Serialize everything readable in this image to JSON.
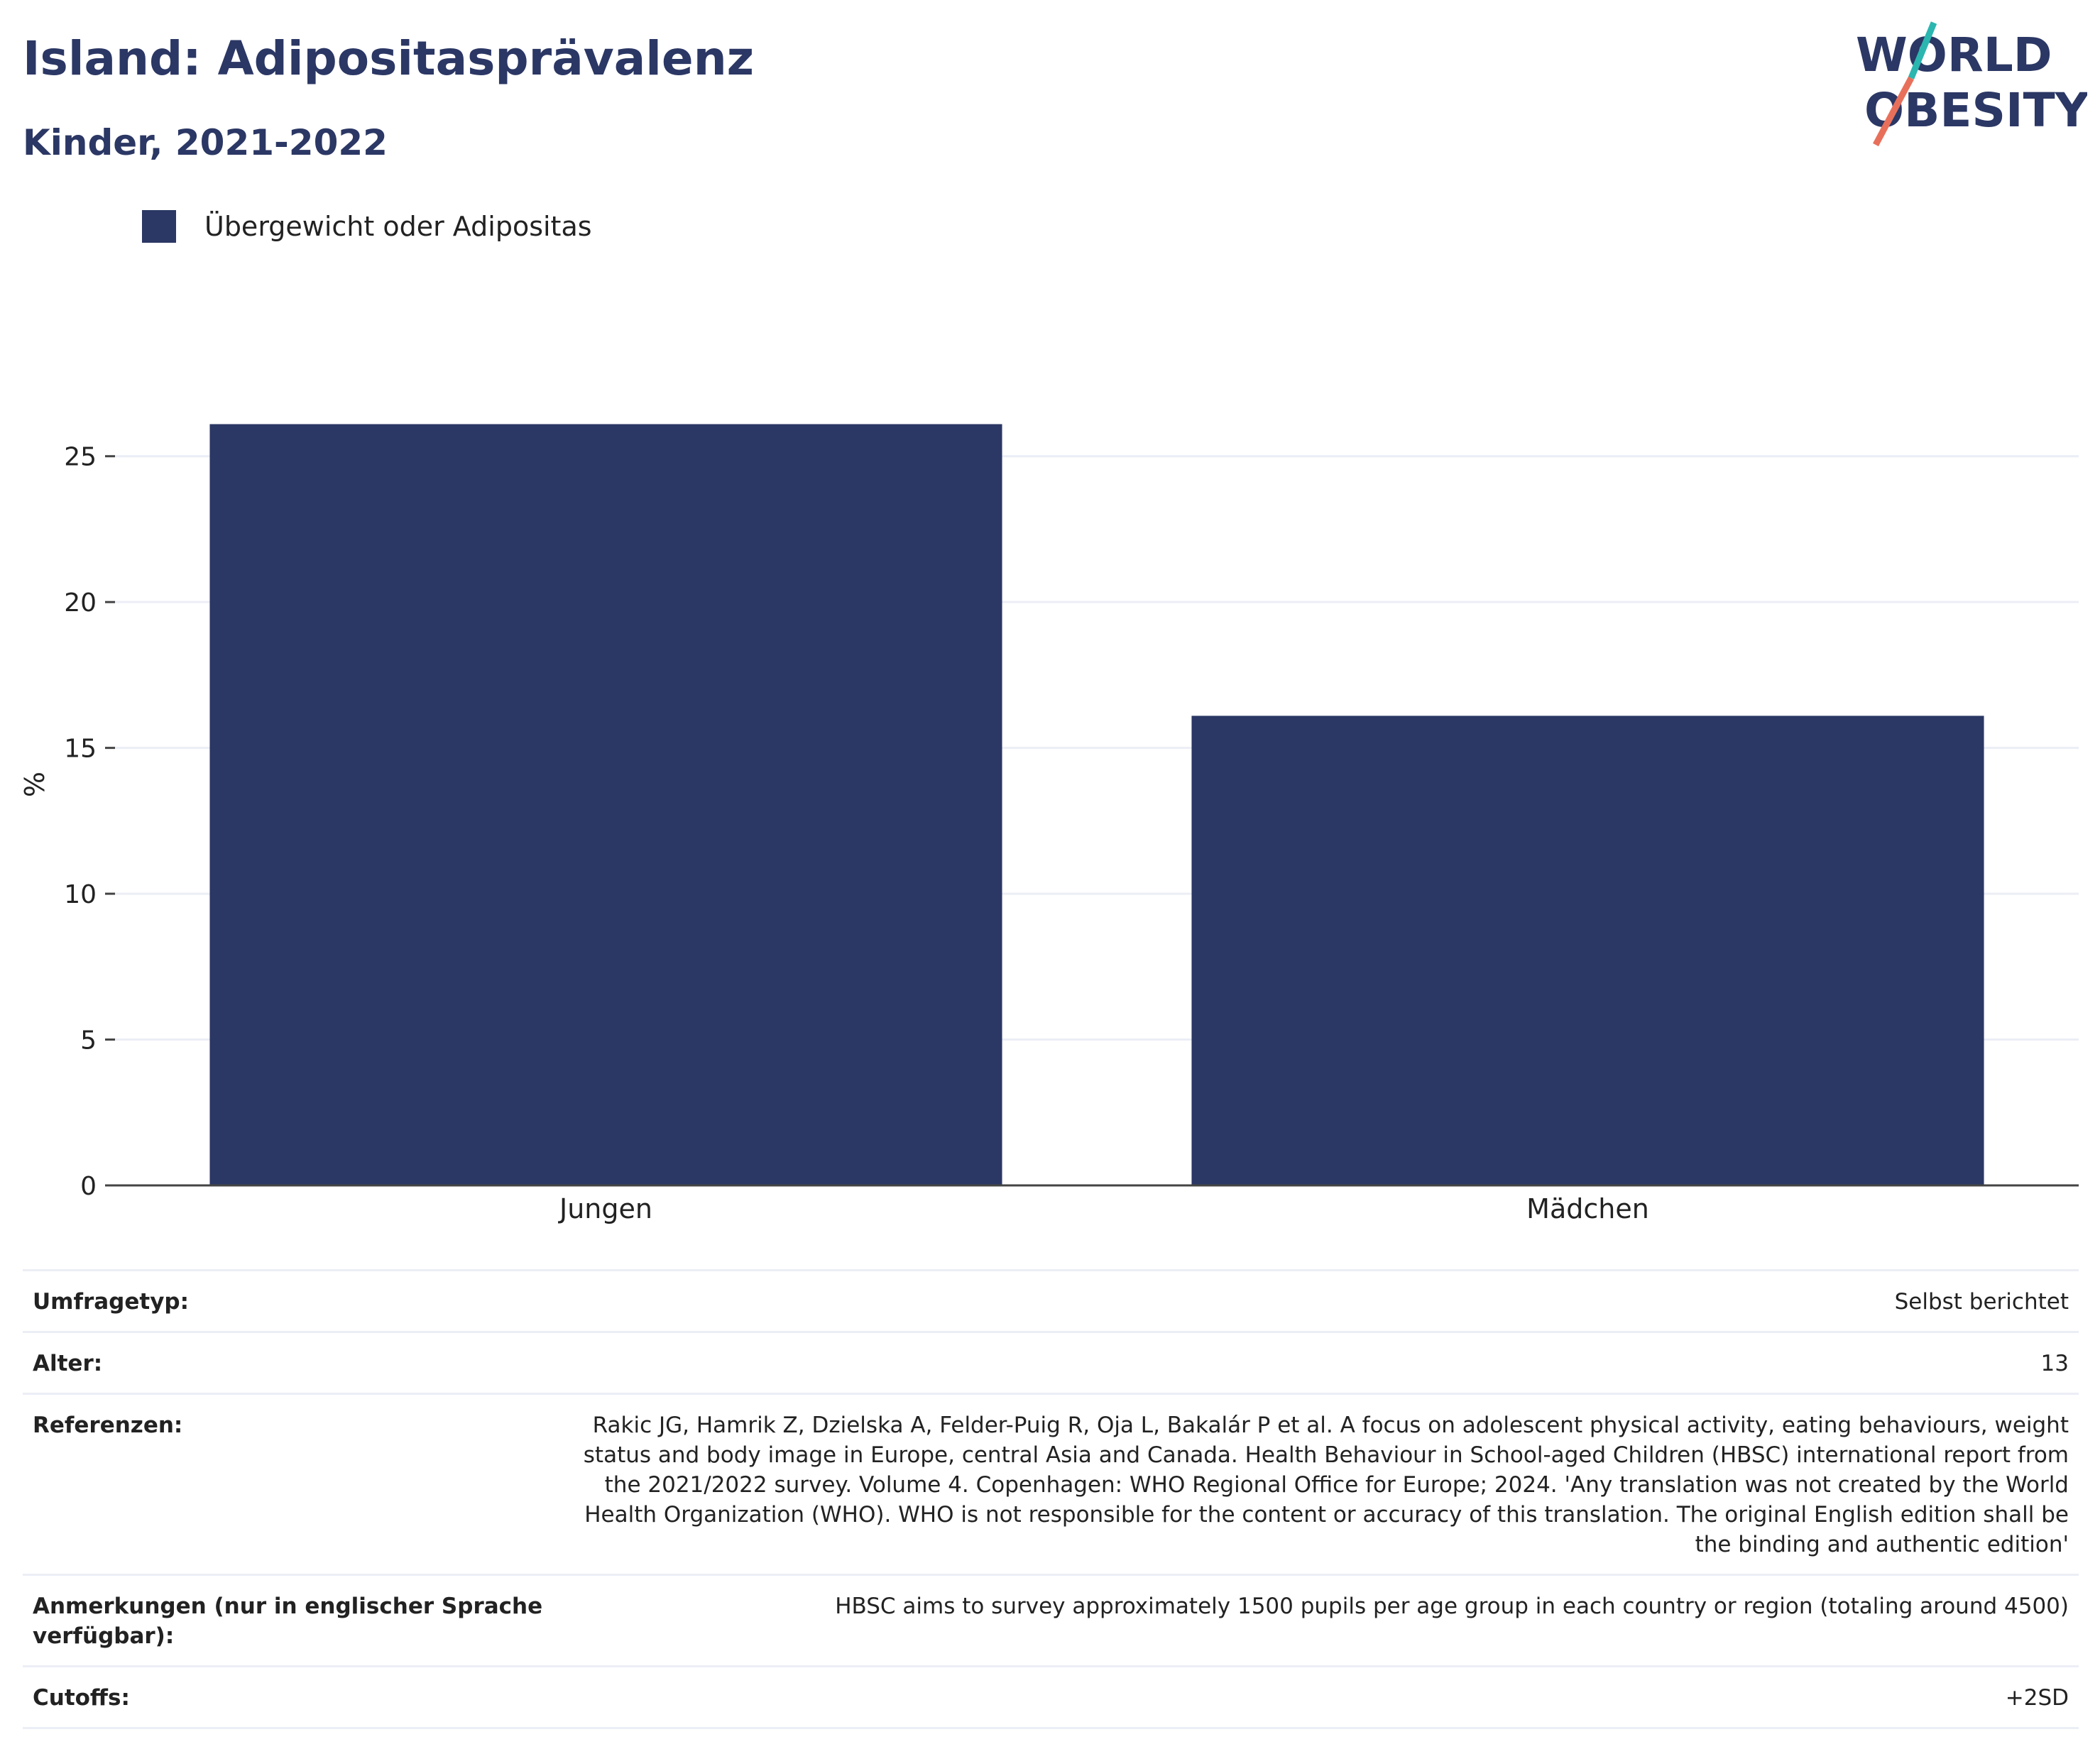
{
  "header": {
    "title": "Island: Adipositasprävalenz",
    "subtitle": "Kinder, 2021-2022"
  },
  "logo": {
    "line1": "WORLD",
    "line2": "OBESITY"
  },
  "colors": {
    "bar": "#2b3764",
    "title": "#2b3764",
    "grid": "#eceef6",
    "logo_teal": "#2bb6b0",
    "logo_red": "#e8705b"
  },
  "chart_data": {
    "type": "bar",
    "categories": [
      "Jungen",
      "Mädchen"
    ],
    "series": [
      {
        "name": "Übergewicht oder Adipositas",
        "values": [
          26.1,
          16.1
        ]
      }
    ],
    "ylabel": "%",
    "ylim": [
      0,
      27.5
    ],
    "yticks": [
      0,
      5,
      10,
      15,
      20,
      25
    ],
    "grid": true,
    "legend": "top-left"
  },
  "meta": [
    {
      "label": "Umfragetyp:",
      "value": "Selbst berichtet"
    },
    {
      "label": "Alter:",
      "value": "13"
    },
    {
      "label": "Referenzen:",
      "value": "Rakic JG, Hamrik Z, Dzielska A, Felder-Puig R, Oja L, Bakalár P et al. A focus on adolescent physical activity, eating behaviours, weight status and body image in Europe, central Asia and Canada. Health Behaviour in School-aged Children (HBSC) international report from the 2021/2022 survey. Volume 4. Copenhagen: WHO Regional Office for Europe; 2024. 'Any translation was not created by the World Health Organization (WHO). WHO is not responsible for the content or accuracy of this translation. The original English edition shall be the binding and authentic edition'"
    },
    {
      "label": "Anmerkungen (nur in englischer Sprache verfügbar):",
      "value": "HBSC aims to survey approximately 1500 pupils per age group in each country or region (totaling around 4500)"
    },
    {
      "label": "Cutoffs:",
      "value": "+2SD"
    }
  ]
}
